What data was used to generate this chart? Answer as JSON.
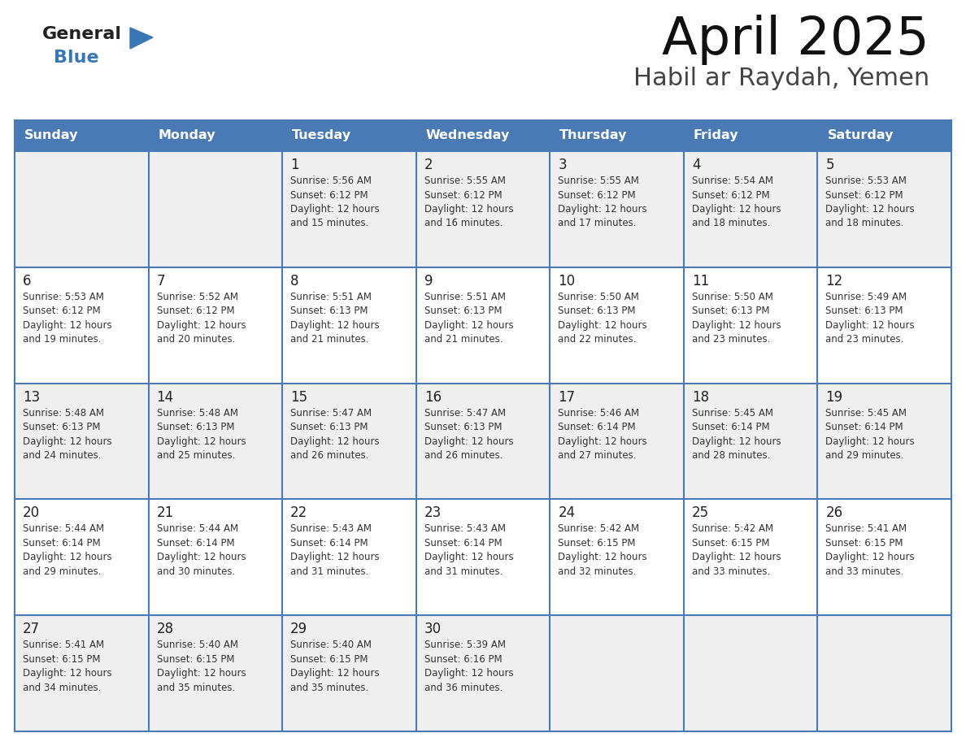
{
  "title": "April 2025",
  "subtitle": "Habil ar Raydah, Yemen",
  "header_bg": "#4a7ab5",
  "header_text": "#ffffff",
  "days_of_week": [
    "Sunday",
    "Monday",
    "Tuesday",
    "Wednesday",
    "Thursday",
    "Friday",
    "Saturday"
  ],
  "cell_bg_even": "#efefef",
  "cell_bg_odd": "#ffffff",
  "line_color": "#4a7ab5",
  "text_color": "#333333",
  "calendar_data": [
    [
      null,
      null,
      {
        "day": 1,
        "sunrise": "5:56 AM",
        "sunset": "6:12 PM",
        "daylight": "12 hours and 15 minutes."
      },
      {
        "day": 2,
        "sunrise": "5:55 AM",
        "sunset": "6:12 PM",
        "daylight": "12 hours and 16 minutes."
      },
      {
        "day": 3,
        "sunrise": "5:55 AM",
        "sunset": "6:12 PM",
        "daylight": "12 hours and 17 minutes."
      },
      {
        "day": 4,
        "sunrise": "5:54 AM",
        "sunset": "6:12 PM",
        "daylight": "12 hours and 18 minutes."
      },
      {
        "day": 5,
        "sunrise": "5:53 AM",
        "sunset": "6:12 PM",
        "daylight": "12 hours and 18 minutes."
      }
    ],
    [
      {
        "day": 6,
        "sunrise": "5:53 AM",
        "sunset": "6:12 PM",
        "daylight": "12 hours and 19 minutes."
      },
      {
        "day": 7,
        "sunrise": "5:52 AM",
        "sunset": "6:12 PM",
        "daylight": "12 hours and 20 minutes."
      },
      {
        "day": 8,
        "sunrise": "5:51 AM",
        "sunset": "6:13 PM",
        "daylight": "12 hours and 21 minutes."
      },
      {
        "day": 9,
        "sunrise": "5:51 AM",
        "sunset": "6:13 PM",
        "daylight": "12 hours and 21 minutes."
      },
      {
        "day": 10,
        "sunrise": "5:50 AM",
        "sunset": "6:13 PM",
        "daylight": "12 hours and 22 minutes."
      },
      {
        "day": 11,
        "sunrise": "5:50 AM",
        "sunset": "6:13 PM",
        "daylight": "12 hours and 23 minutes."
      },
      {
        "day": 12,
        "sunrise": "5:49 AM",
        "sunset": "6:13 PM",
        "daylight": "12 hours and 23 minutes."
      }
    ],
    [
      {
        "day": 13,
        "sunrise": "5:48 AM",
        "sunset": "6:13 PM",
        "daylight": "12 hours and 24 minutes."
      },
      {
        "day": 14,
        "sunrise": "5:48 AM",
        "sunset": "6:13 PM",
        "daylight": "12 hours and 25 minutes."
      },
      {
        "day": 15,
        "sunrise": "5:47 AM",
        "sunset": "6:13 PM",
        "daylight": "12 hours and 26 minutes."
      },
      {
        "day": 16,
        "sunrise": "5:47 AM",
        "sunset": "6:13 PM",
        "daylight": "12 hours and 26 minutes."
      },
      {
        "day": 17,
        "sunrise": "5:46 AM",
        "sunset": "6:14 PM",
        "daylight": "12 hours and 27 minutes."
      },
      {
        "day": 18,
        "sunrise": "5:45 AM",
        "sunset": "6:14 PM",
        "daylight": "12 hours and 28 minutes."
      },
      {
        "day": 19,
        "sunrise": "5:45 AM",
        "sunset": "6:14 PM",
        "daylight": "12 hours and 29 minutes."
      }
    ],
    [
      {
        "day": 20,
        "sunrise": "5:44 AM",
        "sunset": "6:14 PM",
        "daylight": "12 hours and 29 minutes."
      },
      {
        "day": 21,
        "sunrise": "5:44 AM",
        "sunset": "6:14 PM",
        "daylight": "12 hours and 30 minutes."
      },
      {
        "day": 22,
        "sunrise": "5:43 AM",
        "sunset": "6:14 PM",
        "daylight": "12 hours and 31 minutes."
      },
      {
        "day": 23,
        "sunrise": "5:43 AM",
        "sunset": "6:14 PM",
        "daylight": "12 hours and 31 minutes."
      },
      {
        "day": 24,
        "sunrise": "5:42 AM",
        "sunset": "6:15 PM",
        "daylight": "12 hours and 32 minutes."
      },
      {
        "day": 25,
        "sunrise": "5:42 AM",
        "sunset": "6:15 PM",
        "daylight": "12 hours and 33 minutes."
      },
      {
        "day": 26,
        "sunrise": "5:41 AM",
        "sunset": "6:15 PM",
        "daylight": "12 hours and 33 minutes."
      }
    ],
    [
      {
        "day": 27,
        "sunrise": "5:41 AM",
        "sunset": "6:15 PM",
        "daylight": "12 hours and 34 minutes."
      },
      {
        "day": 28,
        "sunrise": "5:40 AM",
        "sunset": "6:15 PM",
        "daylight": "12 hours and 35 minutes."
      },
      {
        "day": 29,
        "sunrise": "5:40 AM",
        "sunset": "6:15 PM",
        "daylight": "12 hours and 35 minutes."
      },
      {
        "day": 30,
        "sunrise": "5:39 AM",
        "sunset": "6:16 PM",
        "daylight": "12 hours and 36 minutes."
      },
      null,
      null,
      null
    ]
  ]
}
